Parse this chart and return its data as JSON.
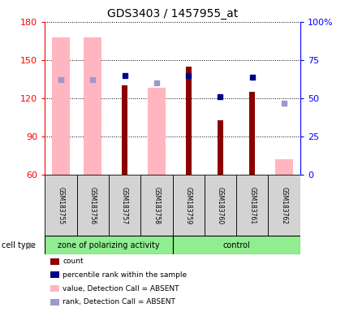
{
  "title": "GDS3403 / 1457955_at",
  "samples": [
    "GSM183755",
    "GSM183756",
    "GSM183757",
    "GSM183758",
    "GSM183759",
    "GSM183760",
    "GSM183761",
    "GSM183762"
  ],
  "count_values": [
    null,
    null,
    130,
    null,
    145,
    103,
    125,
    null
  ],
  "count_color": "#8B0000",
  "absent_value_bars": [
    168,
    168,
    null,
    128,
    null,
    null,
    null,
    72
  ],
  "absent_value_color": "#FFB6C1",
  "percentile_rank": [
    null,
    null,
    65,
    null,
    65,
    51,
    64,
    null
  ],
  "absent_rank": [
    62,
    62,
    null,
    60,
    null,
    null,
    null,
    47
  ],
  "percentile_color": "#00008B",
  "absent_rank_color": "#9999CC",
  "ylim_left": [
    60,
    180
  ],
  "ylim_right": [
    0,
    100
  ],
  "yticks_left": [
    60,
    90,
    120,
    150,
    180
  ],
  "yticks_right": [
    0,
    25,
    50,
    75,
    100
  ],
  "group1_label": "zone of polarizing activity",
  "group1_range": [
    0,
    3
  ],
  "group2_label": "control",
  "group2_range": [
    4,
    7
  ],
  "group_color": "#90EE90",
  "cell_type_label": "cell type",
  "legend_items": [
    {
      "label": "count",
      "color": "#8B0000"
    },
    {
      "label": "percentile rank within the sample",
      "color": "#00008B"
    },
    {
      "label": "value, Detection Call = ABSENT",
      "color": "#FFB6C1"
    },
    {
      "label": "rank, Detection Call = ABSENT",
      "color": "#9999CC"
    }
  ],
  "absent_bar_width": 0.55,
  "count_bar_width": 0.18
}
